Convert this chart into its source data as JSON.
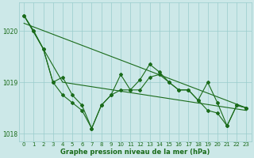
{
  "x": [
    0,
    1,
    2,
    3,
    4,
    5,
    6,
    7,
    8,
    9,
    10,
    11,
    12,
    13,
    14,
    15,
    16,
    17,
    18,
    19,
    20,
    21,
    22,
    23
  ],
  "line_squiggly": [
    1020.3,
    1020.0,
    1019.65,
    1019.0,
    1019.1,
    1018.75,
    1018.55,
    1018.1,
    1018.55,
    1018.75,
    1019.15,
    1018.85,
    1019.05,
    1019.35,
    1019.2,
    1019.0,
    1018.85,
    1018.85,
    1018.65,
    1019.0,
    1018.6,
    1018.15,
    1018.55,
    1018.5
  ],
  "line_medium": [
    1020.3,
    1020.0,
    1019.65,
    1019.0,
    1018.75,
    1018.6,
    1018.45,
    1018.1,
    1018.55,
    1018.75,
    1018.85,
    1018.85,
    1018.85,
    1019.1,
    1019.15,
    1019.0,
    1018.85,
    1018.85,
    1018.65,
    1018.45,
    1018.4,
    1018.15,
    1018.55,
    1018.5
  ],
  "trend1_x": [
    0,
    4,
    23
  ],
  "trend1_y": [
    1020.3,
    1019.0,
    1018.45
  ],
  "trend2_x": [
    0,
    23
  ],
  "trend2_y": [
    1020.15,
    1018.5
  ],
  "ylim": [
    1017.85,
    1020.55
  ],
  "yticks": [
    1018,
    1019,
    1020
  ],
  "xticks": [
    0,
    1,
    2,
    3,
    4,
    5,
    6,
    7,
    8,
    9,
    10,
    11,
    12,
    13,
    14,
    15,
    16,
    17,
    18,
    19,
    20,
    21,
    22,
    23
  ],
  "line_color": "#1a6b1a",
  "bg_color": "#cce8e8",
  "grid_color": "#99cccc",
  "xlabel": "Graphe pression niveau de la mer (hPa)",
  "xlabel_color": "#1a6b1a",
  "marker": "D",
  "marker_size": 2.0,
  "line_width": 0.8,
  "tick_fontsize": 5.0,
  "xlabel_fontsize": 6.0
}
